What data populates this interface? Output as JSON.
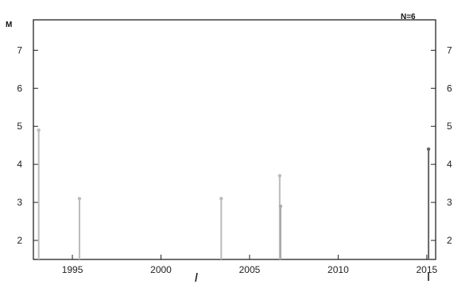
{
  "chart_data": {
    "type": "stem",
    "title": "",
    "title_fragments": [
      "",
      ""
    ],
    "annotation": "N=6",
    "ylabel": "M",
    "xlabel": "",
    "xlim": [
      1992.8,
      2015.5
    ],
    "ylim": [
      1.5,
      7.8
    ],
    "x_ticks": [
      1995,
      2000,
      2005,
      2010,
      2015
    ],
    "y_ticks": [
      2,
      3,
      4,
      5,
      6,
      7
    ],
    "grid": false,
    "points": [
      {
        "x": 1993.1,
        "y": 4.9,
        "color": "#bbbbbb"
      },
      {
        "x": 1995.4,
        "y": 3.1,
        "color": "#bbbbbb"
      },
      {
        "x": 2003.4,
        "y": 3.1,
        "color": "#bbbbbb"
      },
      {
        "x": 2006.7,
        "y": 3.7,
        "color": "#bbbbbb"
      },
      {
        "x": 2006.75,
        "y": 2.9,
        "color": "#aaaaaa"
      },
      {
        "x": 2015.1,
        "y": 4.4,
        "color": "#666666"
      }
    ]
  }
}
